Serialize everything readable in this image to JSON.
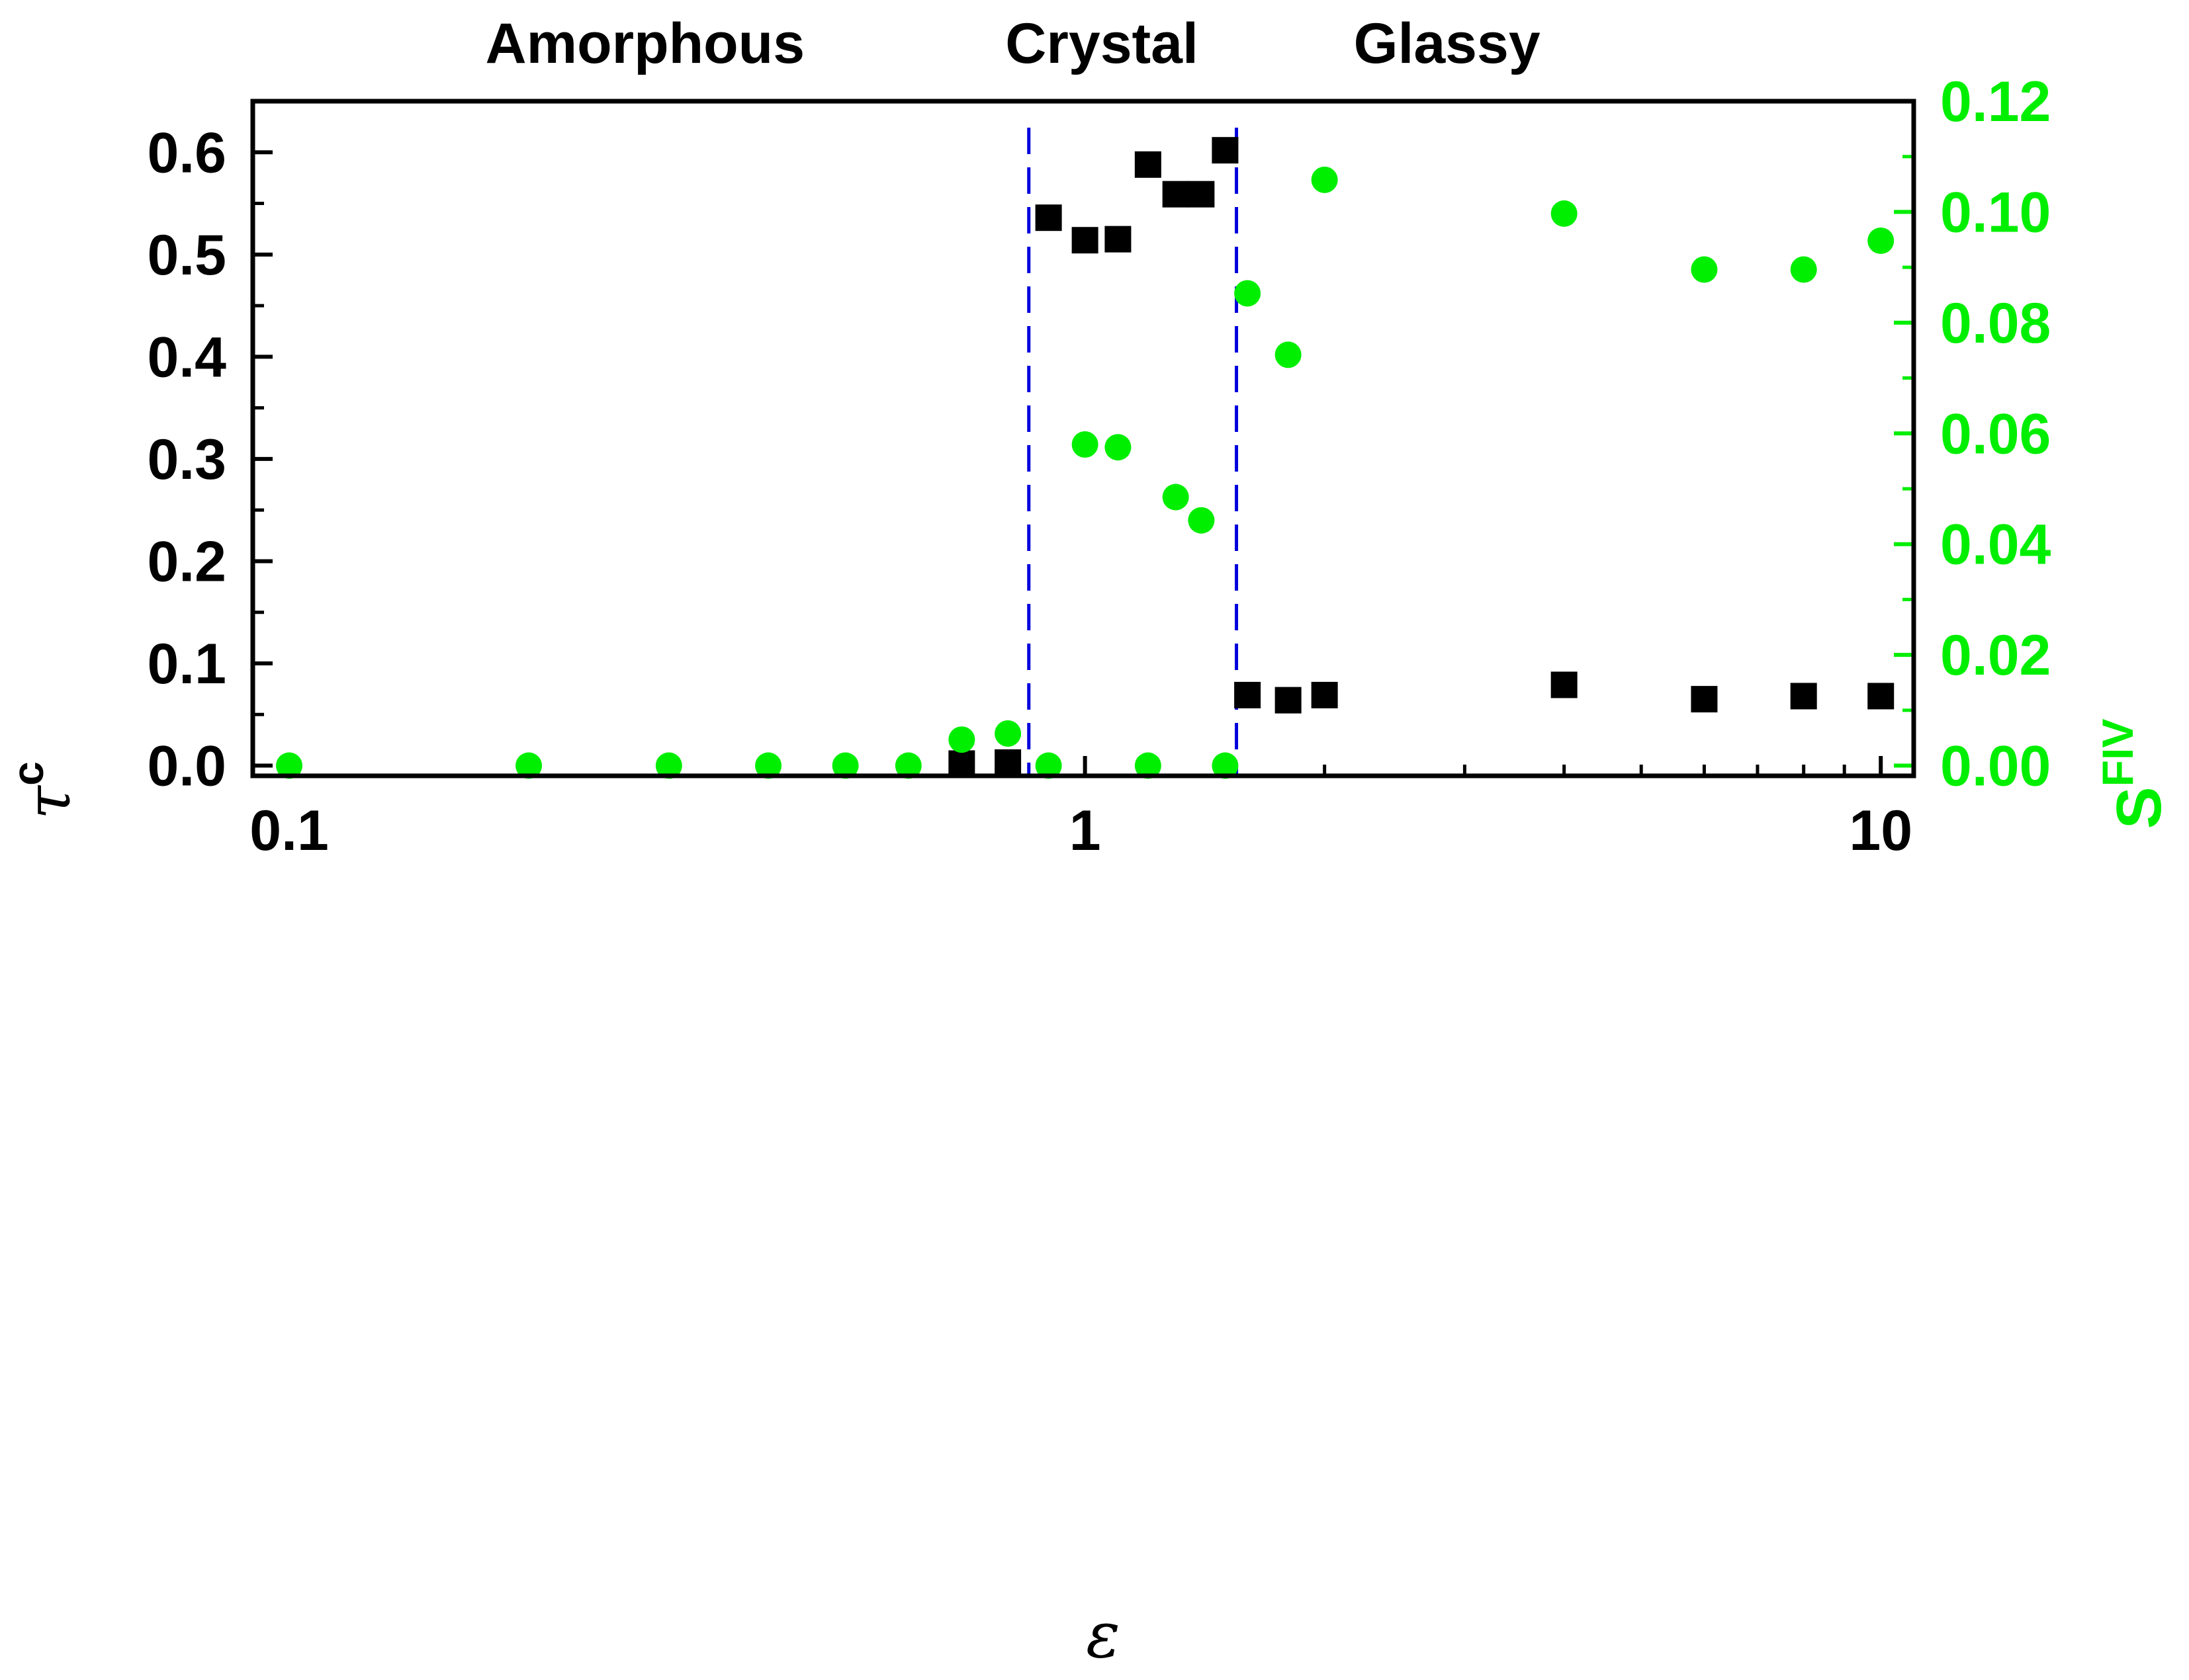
{
  "chart_data": {
    "type": "scatter",
    "x_scale": "log",
    "xlim": [
      0.09,
      11
    ],
    "ylim_left": [
      -0.01,
      0.65
    ],
    "ylim_right": [
      -0.0018461538,
      0.12
    ],
    "xticks": [
      {
        "value": 0.1,
        "label": "0.1"
      },
      {
        "value": 1,
        "label": "1"
      },
      {
        "value": 10,
        "label": "10"
      }
    ],
    "yticks_left": [
      {
        "value": 0.0,
        "label": "0.0"
      },
      {
        "value": 0.1,
        "label": "0.1"
      },
      {
        "value": 0.2,
        "label": "0.2"
      },
      {
        "value": 0.3,
        "label": "0.3"
      },
      {
        "value": 0.4,
        "label": "0.4"
      },
      {
        "value": 0.5,
        "label": "0.5"
      },
      {
        "value": 0.6,
        "label": "0.6"
      }
    ],
    "yticks_right": [
      {
        "value": 0.0,
        "label": "0.00"
      },
      {
        "value": 0.02,
        "label": "0.02"
      },
      {
        "value": 0.04,
        "label": "0.04"
      },
      {
        "value": 0.06,
        "label": "0.06"
      },
      {
        "value": 0.08,
        "label": "0.08"
      },
      {
        "value": 0.1,
        "label": "0.10"
      },
      {
        "value": 0.12,
        "label": "0.12"
      }
    ],
    "xlabel": "ε",
    "ylabel_left": {
      "base": "τ",
      "sup": "c"
    },
    "ylabel_right": {
      "base": "S",
      "sup": "FIV"
    },
    "phase_labels": [
      {
        "text": "Amorphous",
        "x": 0.28
      },
      {
        "text": "Crystal",
        "x": 1.05
      },
      {
        "text": "Glassy",
        "x": 2.85
      }
    ],
    "vlines": [
      0.85,
      1.55
    ],
    "colors": {
      "tau": "#000000",
      "s_fiv": "#00ee00",
      "vline": "#0000dd",
      "axis": "#000000",
      "right_axis": "#00ee00"
    },
    "series": [
      {
        "name": "tau_c",
        "axis": "left",
        "marker": "square",
        "points": [
          {
            "x": 0.7,
            "y": 0.002
          },
          {
            "x": 0.8,
            "y": 0.003
          },
          {
            "x": 0.9,
            "y": 0.536
          },
          {
            "x": 1.0,
            "y": 0.514
          },
          {
            "x": 1.1,
            "y": 0.515
          },
          {
            "x": 1.2,
            "y": 0.588
          },
          {
            "x": 1.3,
            "y": 0.559
          },
          {
            "x": 1.4,
            "y": 0.559
          },
          {
            "x": 1.5,
            "y": 0.602
          },
          {
            "x": 1.6,
            "y": 0.069
          },
          {
            "x": 1.8,
            "y": 0.064
          },
          {
            "x": 2.0,
            "y": 0.069
          },
          {
            "x": 4.0,
            "y": 0.079
          },
          {
            "x": 6.0,
            "y": 0.065
          },
          {
            "x": 8.0,
            "y": 0.068
          },
          {
            "x": 10.0,
            "y": 0.068
          }
        ]
      },
      {
        "name": "S_FIV",
        "axis": "right",
        "marker": "circle",
        "points": [
          {
            "x": 0.1,
            "y": 0.0
          },
          {
            "x": 0.2,
            "y": 0.0
          },
          {
            "x": 0.3,
            "y": 0.0
          },
          {
            "x": 0.4,
            "y": 0.0
          },
          {
            "x": 0.5,
            "y": 0.0
          },
          {
            "x": 0.6,
            "y": 0.0
          },
          {
            "x": 0.7,
            "y": 0.0047
          },
          {
            "x": 0.8,
            "y": 0.0058
          },
          {
            "x": 0.9,
            "y": 0.0
          },
          {
            "x": 1.0,
            "y": 0.058
          },
          {
            "x": 1.1,
            "y": 0.0575
          },
          {
            "x": 1.2,
            "y": 0.0
          },
          {
            "x": 1.3,
            "y": 0.0485
          },
          {
            "x": 1.4,
            "y": 0.0443
          },
          {
            "x": 1.5,
            "y": 0.0
          },
          {
            "x": 1.6,
            "y": 0.0853
          },
          {
            "x": 1.8,
            "y": 0.0742
          },
          {
            "x": 2.0,
            "y": 0.1058
          },
          {
            "x": 4.0,
            "y": 0.0997
          },
          {
            "x": 6.0,
            "y": 0.0896
          },
          {
            "x": 8.0,
            "y": 0.0896
          },
          {
            "x": 10.0,
            "y": 0.0948
          }
        ]
      }
    ]
  }
}
